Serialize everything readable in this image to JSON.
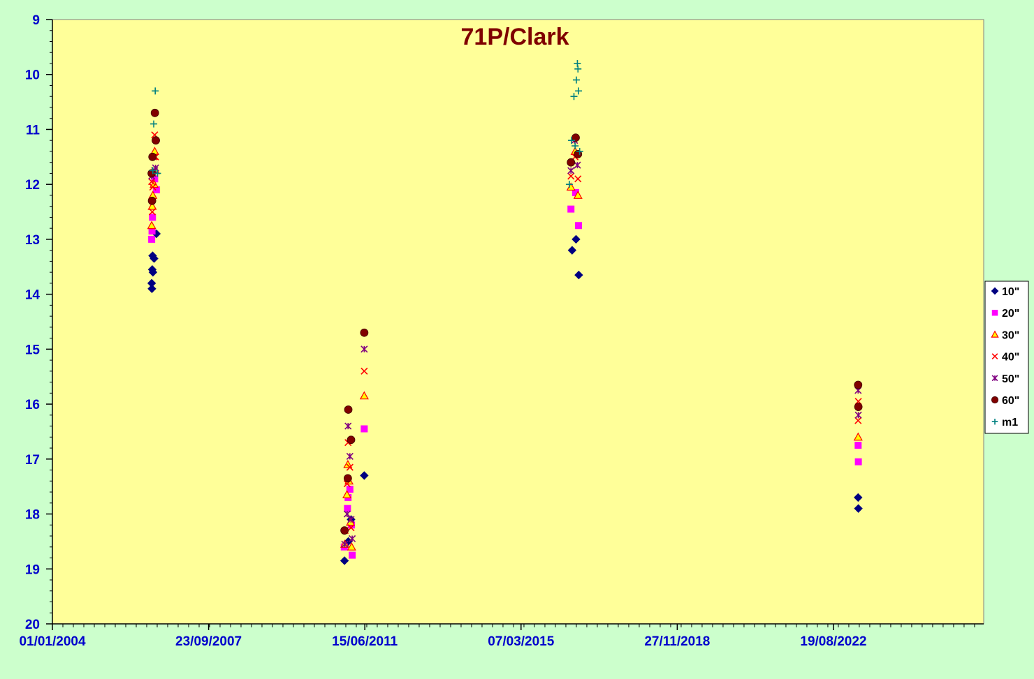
{
  "chart_data": {
    "type": "scatter",
    "title": "71P/Clark",
    "xlabel": "",
    "ylabel": "",
    "x_axis": {
      "kind": "date",
      "min": "2004-01-01",
      "max": "2026-03-20",
      "tick_labels": [
        "01/01/2004",
        "23/09/2007",
        "15/06/2011",
        "07/03/2015",
        "27/11/2018",
        "19/08/2022"
      ],
      "tick_dates": [
        "2004-01-01",
        "2007-09-23",
        "2011-06-15",
        "2015-03-07",
        "2018-11-27",
        "2022-08-19"
      ]
    },
    "y_axis": {
      "min": 9,
      "max": 20,
      "inverted": true,
      "tick_labels": [
        "9",
        "10",
        "11",
        "12",
        "13",
        "14",
        "15",
        "16",
        "17",
        "18",
        "19",
        "20"
      ]
    },
    "grid": false,
    "legend_position": "right",
    "colors": {
      "plot_background": "#ffff99",
      "outer_background": "#ccffcc",
      "title": "#7f0000",
      "tick_labels": "#0000cc"
    },
    "series": [
      {
        "name": "10\"",
        "marker": "diamond",
        "color": "#000080",
        "points": [
          [
            "2006-05-15",
            13.8
          ],
          [
            "2006-05-17",
            13.9
          ],
          [
            "2006-05-20",
            13.55
          ],
          [
            "2006-05-23",
            13.3
          ],
          [
            "2006-05-26",
            13.6
          ],
          [
            "2006-06-05",
            13.35
          ],
          [
            "2006-06-25",
            12.9
          ],
          [
            "2010-12-20",
            18.85
          ],
          [
            "2011-01-22",
            18.5
          ],
          [
            "2011-02-15",
            18.1
          ],
          [
            "2011-06-10",
            17.3
          ],
          [
            "2016-05-25",
            13.2
          ],
          [
            "2016-06-28",
            13.0
          ],
          [
            "2016-07-22",
            13.65
          ],
          [
            "2023-03-22",
            17.7
          ],
          [
            "2023-03-24",
            17.9
          ]
        ]
      },
      {
        "name": "20\"",
        "marker": "square",
        "color": "#ff00ff",
        "points": [
          [
            "2006-05-15",
            13.0
          ],
          [
            "2006-05-18",
            12.85
          ],
          [
            "2006-05-22",
            12.6
          ],
          [
            "2006-06-10",
            11.9
          ],
          [
            "2006-06-25",
            12.1
          ],
          [
            "2010-12-18",
            18.6
          ],
          [
            "2011-01-15",
            17.9
          ],
          [
            "2011-01-20",
            17.7
          ],
          [
            "2011-02-05",
            17.55
          ],
          [
            "2011-02-18",
            18.2
          ],
          [
            "2011-02-25",
            18.75
          ],
          [
            "2011-06-10",
            16.45
          ],
          [
            "2016-05-15",
            12.45
          ],
          [
            "2016-06-25",
            12.15
          ],
          [
            "2016-07-20",
            12.75
          ],
          [
            "2023-03-22",
            16.75
          ],
          [
            "2023-03-24",
            17.05
          ]
        ]
      },
      {
        "name": "30\"",
        "marker": "triangle",
        "color": "#ff0000",
        "fill": "#ffff00",
        "points": [
          [
            "2006-05-15",
            12.75
          ],
          [
            "2006-05-20",
            12.4
          ],
          [
            "2006-05-25",
            12.2
          ],
          [
            "2006-06-05",
            12.0
          ],
          [
            "2006-06-10",
            11.4
          ],
          [
            "2006-06-18",
            11.75
          ],
          [
            "2010-12-22",
            18.55
          ],
          [
            "2011-01-10",
            17.65
          ],
          [
            "2011-01-18",
            17.1
          ],
          [
            "2011-01-28",
            17.4
          ],
          [
            "2011-02-10",
            18.15
          ],
          [
            "2011-02-20",
            18.6
          ],
          [
            "2011-06-10",
            15.85
          ],
          [
            "2016-05-15",
            12.05
          ],
          [
            "2016-06-20",
            11.4
          ],
          [
            "2016-07-15",
            12.2
          ],
          [
            "2023-03-22",
            16.6
          ]
        ]
      },
      {
        "name": "40\"",
        "marker": "x",
        "color": "#ff0000",
        "points": [
          [
            "2006-05-15",
            11.95
          ],
          [
            "2006-05-20",
            12.5
          ],
          [
            "2006-05-25",
            12.05
          ],
          [
            "2006-06-05",
            11.5
          ],
          [
            "2006-06-10",
            11.1
          ],
          [
            "2006-06-18",
            11.5
          ],
          [
            "2010-12-25",
            18.3
          ],
          [
            "2011-01-12",
            17.45
          ],
          [
            "2011-01-20",
            16.7
          ],
          [
            "2011-02-05",
            17.15
          ],
          [
            "2011-02-15",
            18.25
          ],
          [
            "2011-06-10",
            15.4
          ],
          [
            "2016-05-15",
            11.85
          ],
          [
            "2016-06-20",
            11.5
          ],
          [
            "2016-07-15",
            11.9
          ],
          [
            "2023-03-22",
            16.3
          ],
          [
            "2023-03-24",
            15.95
          ]
        ]
      },
      {
        "name": "50\"",
        "marker": "star",
        "color": "#800080",
        "points": [
          [
            "2006-05-15",
            11.85
          ],
          [
            "2006-05-25",
            11.8
          ],
          [
            "2006-06-10",
            11.75
          ],
          [
            "2006-06-18",
            11.7
          ],
          [
            "2010-12-22",
            18.55
          ],
          [
            "2011-01-12",
            18.0
          ],
          [
            "2011-01-20",
            16.4
          ],
          [
            "2011-02-05",
            16.95
          ],
          [
            "2011-02-15",
            18.1
          ],
          [
            "2011-02-25",
            18.45
          ],
          [
            "2011-06-10",
            15.0
          ],
          [
            "2016-05-15",
            11.75
          ],
          [
            "2016-06-15",
            11.2
          ],
          [
            "2016-07-10",
            11.65
          ],
          [
            "2023-03-22",
            15.75
          ],
          [
            "2023-03-24",
            16.2
          ]
        ]
      },
      {
        "name": "60\"",
        "marker": "circle",
        "color": "#800000",
        "points": [
          [
            "2006-05-15",
            11.8
          ],
          [
            "2006-05-18",
            12.3
          ],
          [
            "2006-05-22",
            11.5
          ],
          [
            "2006-06-12",
            10.7
          ],
          [
            "2006-06-20",
            11.2
          ],
          [
            "2010-12-20",
            18.3
          ],
          [
            "2011-01-18",
            17.35
          ],
          [
            "2011-01-22",
            16.1
          ],
          [
            "2011-02-15",
            16.65
          ],
          [
            "2011-06-10",
            14.7
          ],
          [
            "2016-05-15",
            11.6
          ],
          [
            "2016-06-25",
            11.15
          ],
          [
            "2016-07-15",
            11.45
          ],
          [
            "2023-03-22",
            15.65
          ],
          [
            "2023-03-24",
            16.05
          ]
        ]
      },
      {
        "name": "m1",
        "marker": "plus",
        "color": "#008080",
        "points": [
          [
            "2006-05-25",
            11.75
          ],
          [
            "2006-06-02",
            10.9
          ],
          [
            "2006-06-15",
            10.3
          ],
          [
            "2006-07-05",
            11.8
          ],
          [
            "2016-05-01",
            12.0
          ],
          [
            "2016-05-20",
            11.2
          ],
          [
            "2016-06-10",
            10.4
          ],
          [
            "2016-06-20",
            11.3
          ],
          [
            "2016-07-01",
            10.1
          ],
          [
            "2016-07-10",
            9.8
          ],
          [
            "2016-07-15",
            9.9
          ],
          [
            "2016-07-20",
            10.3
          ],
          [
            "2016-07-30",
            11.4
          ]
        ]
      }
    ]
  }
}
